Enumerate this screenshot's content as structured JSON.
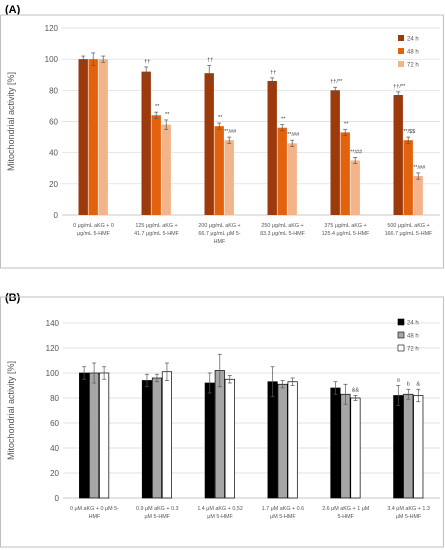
{
  "chart_data": [
    {
      "panel": "(A)",
      "type": "bar",
      "ylabel": "Mitochondrial activity [%]",
      "ylim": [
        0,
        120
      ],
      "yticks": [
        0,
        20,
        40,
        60,
        80,
        100,
        120
      ],
      "grid": true,
      "legend": "top-right",
      "categories": [
        [
          "0 μg/mL aKG + 0",
          "μg/mL 5-HMF"
        ],
        [
          "125 μg/mL aKG +",
          "41.7 μg/mL 5-HMF"
        ],
        [
          "200 μg/mL aKG +",
          "66.7 μg/mL μM 5-",
          "HMF"
        ],
        [
          "250 μg/mL aKG +",
          "83.3 μg/mL 5-HMF"
        ],
        [
          "375 μg/mL aKG +",
          "125.4 μg/mL 5-HMF"
        ],
        [
          "500 μg/mL aKG +",
          "166.7 μg/mL 5-HMF"
        ]
      ],
      "series": [
        {
          "name": "24 h",
          "color": "#9c3a0c",
          "values": [
            100,
            92,
            91,
            86,
            80,
            77
          ],
          "errors": [
            2,
            3,
            5,
            2,
            2,
            2
          ],
          "annotations": [
            "",
            "††",
            "††",
            "††",
            "††/**",
            "††/**"
          ]
        },
        {
          "name": "48 h",
          "color": "#e3620e",
          "values": [
            100,
            64,
            57,
            56,
            53,
            48
          ],
          "errors": [
            4,
            2,
            2,
            2,
            2,
            2
          ],
          "annotations": [
            "",
            "**",
            "**",
            "**",
            "**",
            "**/$$"
          ]
        },
        {
          "name": "72 h",
          "color": "#f3b48a",
          "values": [
            100,
            58,
            48,
            46,
            35,
            25
          ],
          "errors": [
            2,
            3,
            2,
            2,
            2,
            2
          ],
          "annotations": [
            "",
            "**",
            "**/##",
            "**/##",
            "**/##",
            "**/##"
          ]
        }
      ]
    },
    {
      "panel": "(B)",
      "type": "bar",
      "ylabel": "Mitochondrial activity [%]",
      "ylim": [
        0,
        140
      ],
      "yticks": [
        0,
        20,
        40,
        60,
        80,
        100,
        120,
        140
      ],
      "grid": true,
      "legend": "top-right",
      "categories": [
        [
          "0 μM aKG + 0 μM 5-",
          "HMF"
        ],
        [
          "0.9 μM aKG + 0.3",
          "μM 5-HMF"
        ],
        [
          "1.4 μM aKG + 0,52",
          "μM 5-HMF"
        ],
        [
          "1.7 μM aKG + 0.6",
          "μM 5-HMF"
        ],
        [
          "2.6 μM aKG + 1 μM",
          "5-HMF"
        ],
        [
          "3.4 μM aKG + 1.3",
          "μM 5-HMF"
        ]
      ],
      "series": [
        {
          "name": "24 h",
          "color": "#000000",
          "values": [
            100,
            94,
            92,
            93,
            88,
            82
          ],
          "errors": [
            5,
            5,
            8,
            12,
            5,
            8
          ],
          "annotations": [
            "",
            "",
            "",
            "",
            "",
            "a"
          ]
        },
        {
          "name": "48 h",
          "color": "#a6a6a6",
          "values": [
            100,
            96,
            102,
            91,
            83,
            83
          ],
          "errors": [
            8,
            3,
            13,
            3,
            8,
            4
          ],
          "annotations": [
            "",
            "",
            "",
            "",
            "",
            "b"
          ]
        },
        {
          "name": "72 h",
          "color": "#ffffff",
          "values": [
            100,
            101,
            95,
            93,
            80,
            82
          ],
          "errors": [
            5,
            7,
            3,
            3,
            2,
            5
          ],
          "annotations": [
            "",
            "",
            "",
            "",
            "&&",
            "&"
          ]
        }
      ]
    }
  ]
}
